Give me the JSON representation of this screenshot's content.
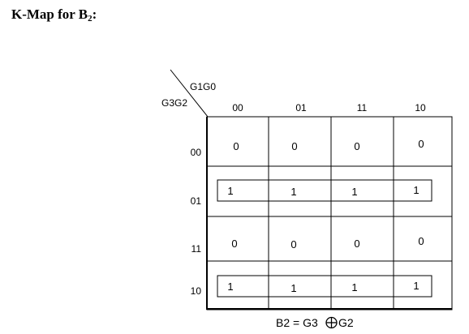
{
  "title": {
    "prefix": "K-Map for B",
    "subscript": "2",
    "suffix": ":"
  },
  "corner": {
    "col_var": "G1G0",
    "row_var": "G3G2"
  },
  "columns": [
    "00",
    "01",
    "11",
    "10"
  ],
  "rows": [
    "00",
    "01",
    "11",
    "10"
  ],
  "cells": [
    [
      "0",
      "0",
      "0",
      "0"
    ],
    [
      "1",
      "1",
      "1",
      "1"
    ],
    [
      "0",
      "0",
      "0",
      "0"
    ],
    [
      "1",
      "1",
      "1",
      "1"
    ]
  ],
  "groups": [
    {
      "row": "01",
      "span": "all columns"
    },
    {
      "row": "10",
      "span": "all columns"
    }
  ],
  "equation": {
    "lhs": "B2 = G3",
    "rhs": "G2",
    "operator": "xor"
  }
}
